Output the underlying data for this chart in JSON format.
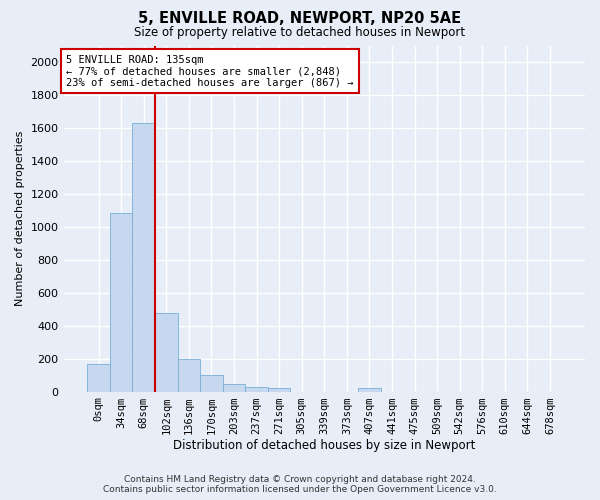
{
  "title_line1": "5, ENVILLE ROAD, NEWPORT, NP20 5AE",
  "title_line2": "Size of property relative to detached houses in Newport",
  "xlabel": "Distribution of detached houses by size in Newport",
  "ylabel": "Number of detached properties",
  "bar_labels": [
    "0sqm",
    "34sqm",
    "68sqm",
    "102sqm",
    "136sqm",
    "170sqm",
    "203sqm",
    "237sqm",
    "271sqm",
    "305sqm",
    "339sqm",
    "373sqm",
    "407sqm",
    "441sqm",
    "475sqm",
    "509sqm",
    "542sqm",
    "576sqm",
    "610sqm",
    "644sqm",
    "678sqm"
  ],
  "bar_values": [
    165,
    1085,
    1630,
    480,
    200,
    100,
    47,
    30,
    20,
    0,
    0,
    0,
    20,
    0,
    0,
    0,
    0,
    0,
    0,
    0,
    0
  ],
  "bar_color": "#c5d8f0",
  "bar_edge_color": "#7aafd4",
  "vline_color": "#cc0000",
  "vline_index": 2.5,
  "ylim_max": 2100,
  "yticks": [
    0,
    200,
    400,
    600,
    800,
    1000,
    1200,
    1400,
    1600,
    1800,
    2000
  ],
  "annotation_text": "5 ENVILLE ROAD: 135sqm\n← 77% of detached houses are smaller (2,848)\n23% of semi-detached houses are larger (867) →",
  "footer_line1": "Contains HM Land Registry data © Crown copyright and database right 2024.",
  "footer_line2": "Contains public sector information licensed under the Open Government Licence v3.0.",
  "bg_color": "#e8eef8",
  "grid_color": "#d0d8e8"
}
